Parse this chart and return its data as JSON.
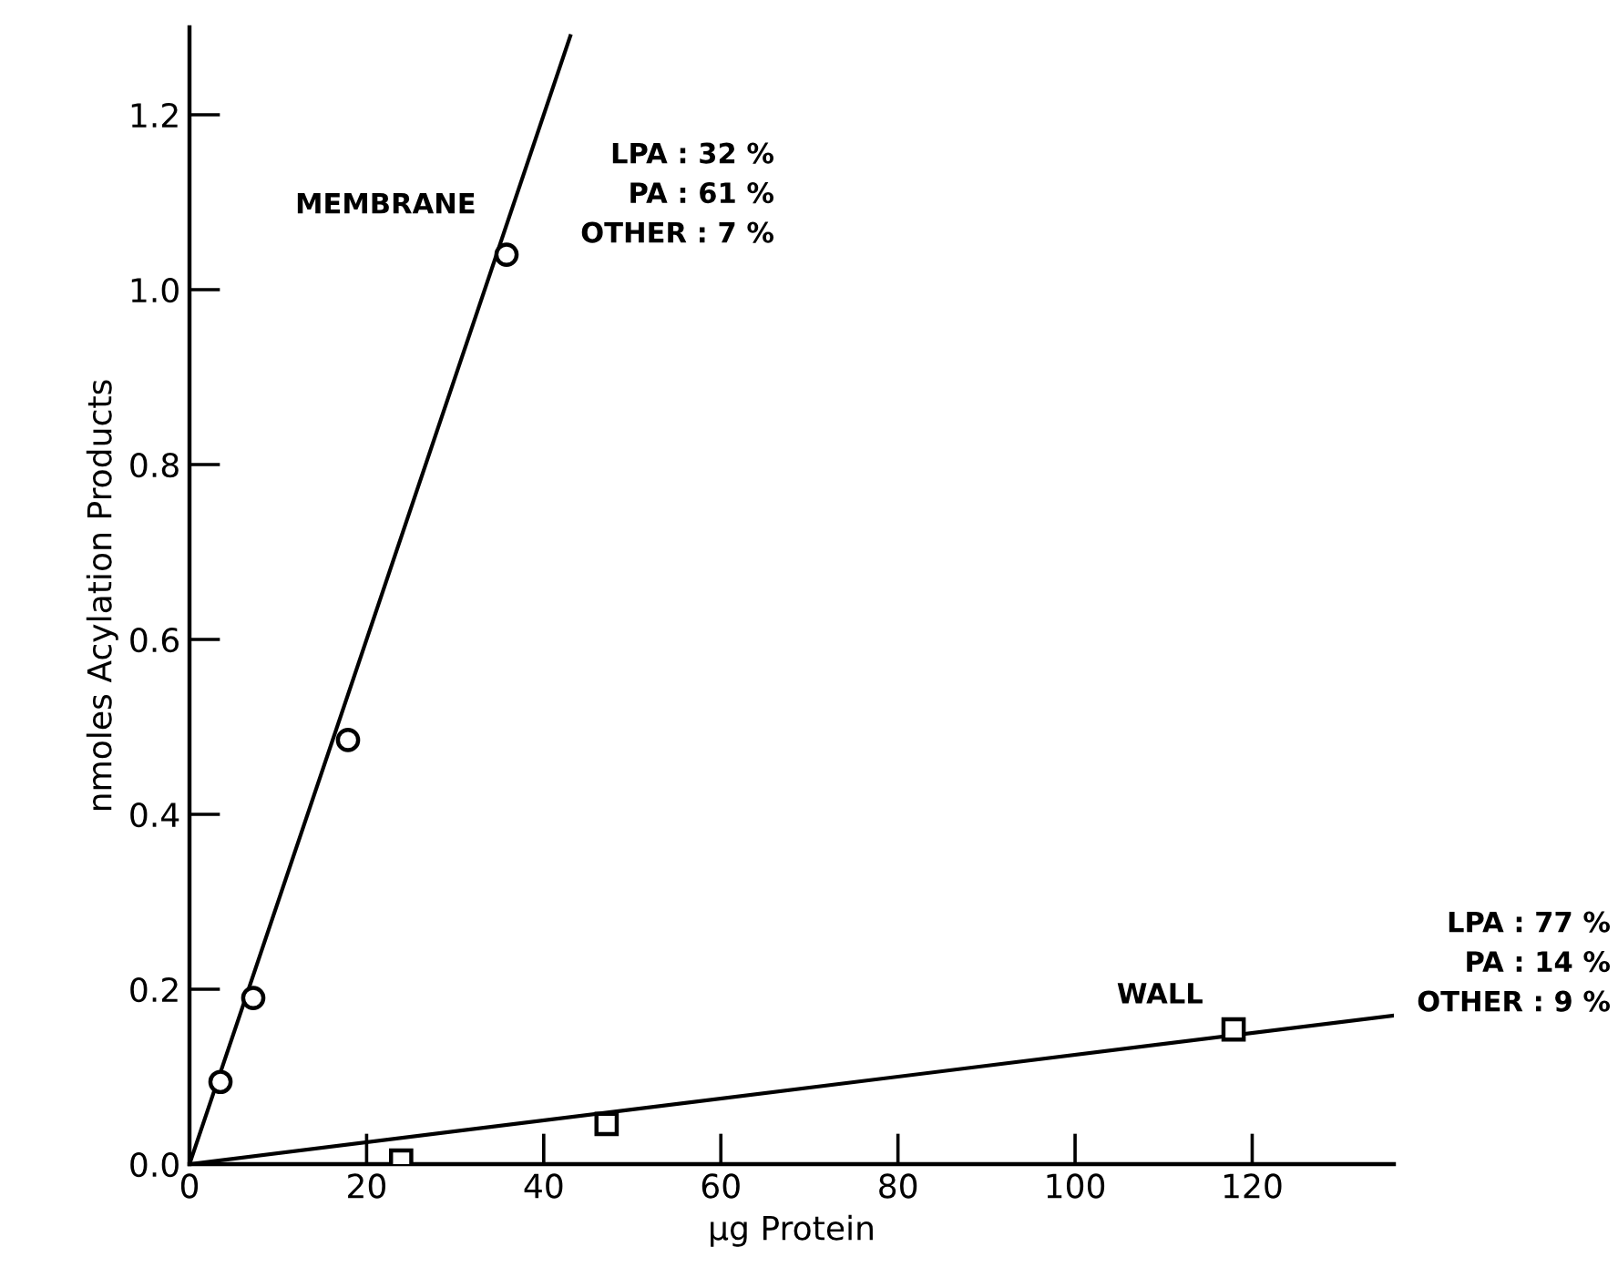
{
  "chart_data": {
    "type": "scatter",
    "xlabel": "μg Protein",
    "ylabel": "nmoles Acylation Products",
    "xlim": [
      0,
      136
    ],
    "ylim": [
      0,
      1.3
    ],
    "xticks": [
      0,
      20,
      40,
      60,
      80,
      100,
      120
    ],
    "yticks": [
      {
        "value": 0,
        "label": "0.0"
      },
      {
        "value": 0.2,
        "label": "0.2"
      },
      {
        "value": 0.4,
        "label": "0.4"
      },
      {
        "value": 0.6,
        "label": "0.6"
      },
      {
        "value": 0.8,
        "label": "0.8"
      },
      {
        "value": 1.0,
        "label": "1.0"
      },
      {
        "value": 1.2,
        "label": "1.2"
      }
    ],
    "grid": false,
    "legend": false,
    "series": [
      {
        "name": "MEMBRANE",
        "marker": "circle",
        "color": "#000000",
        "x": [
          3.5,
          7.2,
          17.9,
          35.8
        ],
        "values": [
          0.094,
          0.19,
          0.485,
          1.04
        ]
      },
      {
        "name": "WALL",
        "marker": "square",
        "color": "#000000",
        "x": [
          23.9,
          47.1,
          117.9
        ],
        "values": [
          0.004,
          0.046,
          0.154
        ]
      },
      {
        "type": "line",
        "color": "#000000",
        "x": [
          0,
          43
        ],
        "values": [
          0,
          1.29
        ]
      },
      {
        "type": "line",
        "color": "#000000",
        "x": [
          0,
          136
        ],
        "values": [
          0,
          0.17
        ]
      }
    ],
    "annotations": [
      "LPA : 32 %\nPA : 61 %\nOTHER : 7 %",
      "LPA : 77 %\nPA : 14 %\nOTHER : 9 %"
    ]
  }
}
